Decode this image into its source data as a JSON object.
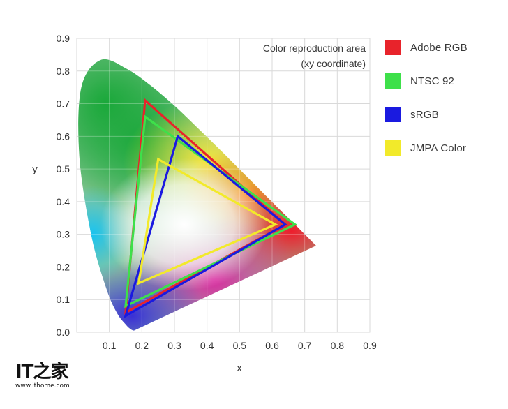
{
  "chart_data": {
    "type": "line",
    "annotation": [
      "Color reproduction area",
      "(xy coordinate)"
    ],
    "xlabel": "x",
    "ylabel": "y",
    "xlim": [
      0,
      0.9
    ],
    "ylim": [
      0,
      0.9
    ],
    "x_ticks": [
      "0.1",
      "0.2",
      "0.3",
      "0.4",
      "0.5",
      "0.6",
      "0.7",
      "0.8",
      "0.9"
    ],
    "y_ticks": [
      "0.0",
      "0.1",
      "0.2",
      "0.3",
      "0.4",
      "0.5",
      "0.6",
      "0.7",
      "0.8",
      "0.9"
    ],
    "grid": true,
    "legend_position": "right",
    "series": [
      {
        "name": "Adobe RGB",
        "color": "#e8232b",
        "points": [
          [
            0.64,
            0.33
          ],
          [
            0.21,
            0.71
          ],
          [
            0.15,
            0.06
          ]
        ]
      },
      {
        "name": "NTSC 92",
        "color": "#3ee04a",
        "points": [
          [
            0.67,
            0.33
          ],
          [
            0.21,
            0.66
          ],
          [
            0.15,
            0.08
          ]
        ]
      },
      {
        "name": "sRGB",
        "color": "#1a1ae0",
        "points": [
          [
            0.64,
            0.33
          ],
          [
            0.31,
            0.6
          ],
          [
            0.15,
            0.05
          ]
        ]
      },
      {
        "name": "JMPA Color",
        "color": "#f2ea2a",
        "points": [
          [
            0.61,
            0.33
          ],
          [
            0.25,
            0.53
          ],
          [
            0.19,
            0.15
          ]
        ]
      }
    ],
    "spectral_locus": [
      [
        0.175,
        0.005
      ],
      [
        0.166,
        0.009
      ],
      [
        0.151,
        0.023
      ],
      [
        0.124,
        0.058
      ],
      [
        0.091,
        0.133
      ],
      [
        0.045,
        0.295
      ],
      [
        0.008,
        0.538
      ],
      [
        0.014,
        0.75
      ],
      [
        0.074,
        0.834
      ],
      [
        0.155,
        0.806
      ],
      [
        0.229,
        0.754
      ],
      [
        0.302,
        0.692
      ],
      [
        0.373,
        0.624
      ],
      [
        0.444,
        0.555
      ],
      [
        0.512,
        0.487
      ],
      [
        0.575,
        0.424
      ],
      [
        0.627,
        0.372
      ],
      [
        0.666,
        0.334
      ],
      [
        0.692,
        0.308
      ],
      [
        0.735,
        0.265
      ]
    ]
  },
  "logo": {
    "mark": "IT之家",
    "url": "www.ithome.com"
  }
}
